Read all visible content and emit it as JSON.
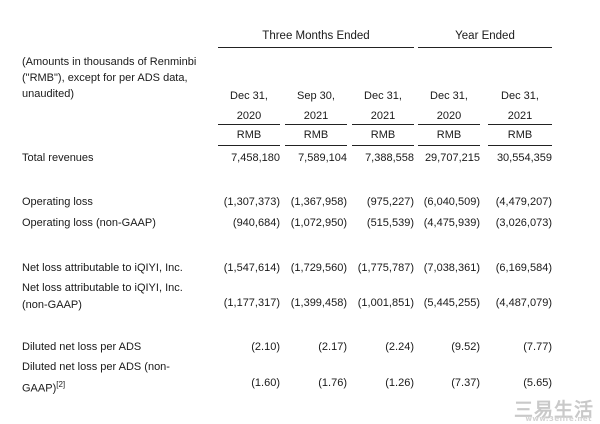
{
  "header": {
    "note_lines": [
      "(Amounts in thousands of Renminbi",
      "(\"RMB\"), except for per ADS data,",
      "unaudited)"
    ],
    "groups": [
      {
        "label": "Three Months Ended"
      },
      {
        "label": "Year Ended"
      }
    ],
    "columns": [
      {
        "line1": "Dec 31,",
        "line2": "2020",
        "currency": "RMB"
      },
      {
        "line1": "Sep 30,",
        "line2": "2021",
        "currency": "RMB"
      },
      {
        "line1": "Dec 31,",
        "line2": "2021",
        "currency": "RMB"
      },
      {
        "line1": "Dec 31,",
        "line2": "2020",
        "currency": "RMB"
      },
      {
        "line1": "Dec 31,",
        "line2": "2021",
        "currency": "RMB"
      }
    ]
  },
  "rows": [
    {
      "label": [
        "Total revenues"
      ],
      "values": [
        "7,458,180",
        "7,589,104",
        "7,388,558",
        "29,707,215",
        "30,554,359"
      ]
    },
    {
      "label": [
        "Operating loss"
      ],
      "values": [
        "(1,307,373)",
        "(1,367,958)",
        "(975,227)",
        "(6,040,509)",
        "(4,479,207)"
      ]
    },
    {
      "label": [
        "Operating loss (non-GAAP)"
      ],
      "values": [
        "(940,684)",
        "(1,072,950)",
        "(515,539)",
        "(4,475,939)",
        "(3,026,073)"
      ]
    },
    {
      "label": [
        "Net loss attributable to iQIYI, Inc."
      ],
      "values": [
        "(1,547,614)",
        "(1,729,560)",
        "(1,775,787)",
        "(7,038,361)",
        "(6,169,584)"
      ]
    },
    {
      "label": [
        "Net loss attributable to iQIYI, Inc.",
        "(non-GAAP)"
      ],
      "values": [
        "(1,177,317)",
        "(1,399,458)",
        "(1,001,851)",
        "(5,445,255)",
        "(4,487,079)"
      ]
    },
    {
      "label": [
        "Diluted net loss per ADS"
      ],
      "values": [
        "(2.10)",
        "(2.17)",
        "(2.24)",
        "(9.52)",
        "(7.77)"
      ]
    },
    {
      "label": [
        "Diluted net loss per ADS (non-",
        "GAAP)"
      ],
      "footnote": "[2]",
      "values": [
        "(1.60)",
        "(1.76)",
        "(1.26)",
        "(7.37)",
        "(5.65)"
      ]
    }
  ],
  "watermark": {
    "text": "三易生活",
    "url": "www.3elife.net"
  }
}
